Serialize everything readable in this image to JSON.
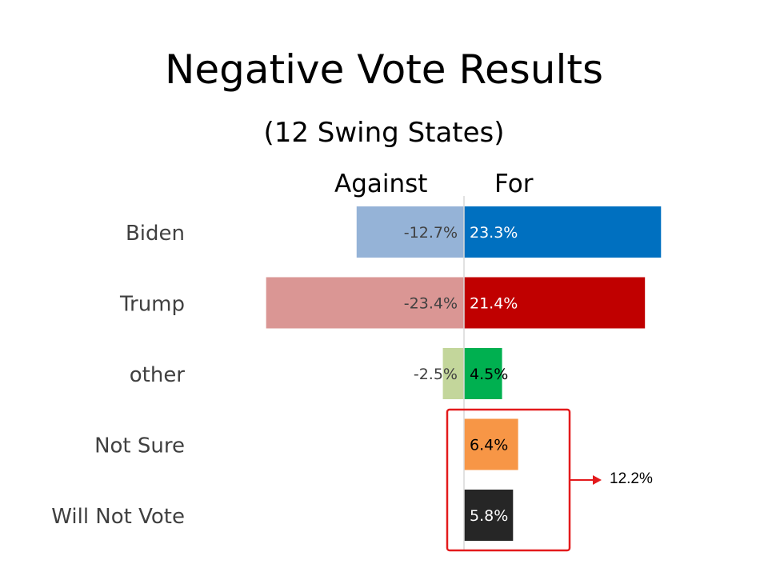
{
  "title": "Negative Vote Results",
  "subtitle": "(12 Swing States)",
  "headers": {
    "against": "Against",
    "for": "For"
  },
  "chart_data": {
    "type": "bar",
    "orientation": "horizontal-diverging",
    "categories": [
      "Biden",
      "Trump",
      "other",
      "Not Sure",
      "Will Not Vote"
    ],
    "series": [
      {
        "name": "Against",
        "values": [
          -12.7,
          -23.4,
          -2.5,
          null,
          null
        ],
        "labels": [
          "-12.7%",
          "-23.4%",
          "-2.5%",
          "",
          ""
        ],
        "colors": [
          "#95b3d7",
          "#da9694",
          "#c3d69b",
          "#ffffff",
          "#ffffff"
        ]
      },
      {
        "name": "For",
        "values": [
          23.3,
          21.4,
          4.5,
          6.4,
          5.8
        ],
        "labels": [
          "23.3%",
          "21.4%",
          "4.5%",
          "6.4%",
          "5.8%"
        ],
        "colors": [
          "#0070c0",
          "#c00000",
          "#00b050",
          "#f79646",
          "#262626"
        ]
      }
    ],
    "annotation": {
      "text": "12.2%",
      "applies_to": [
        "Not Sure",
        "Will Not Vote"
      ],
      "color": "#e31a1c"
    }
  }
}
